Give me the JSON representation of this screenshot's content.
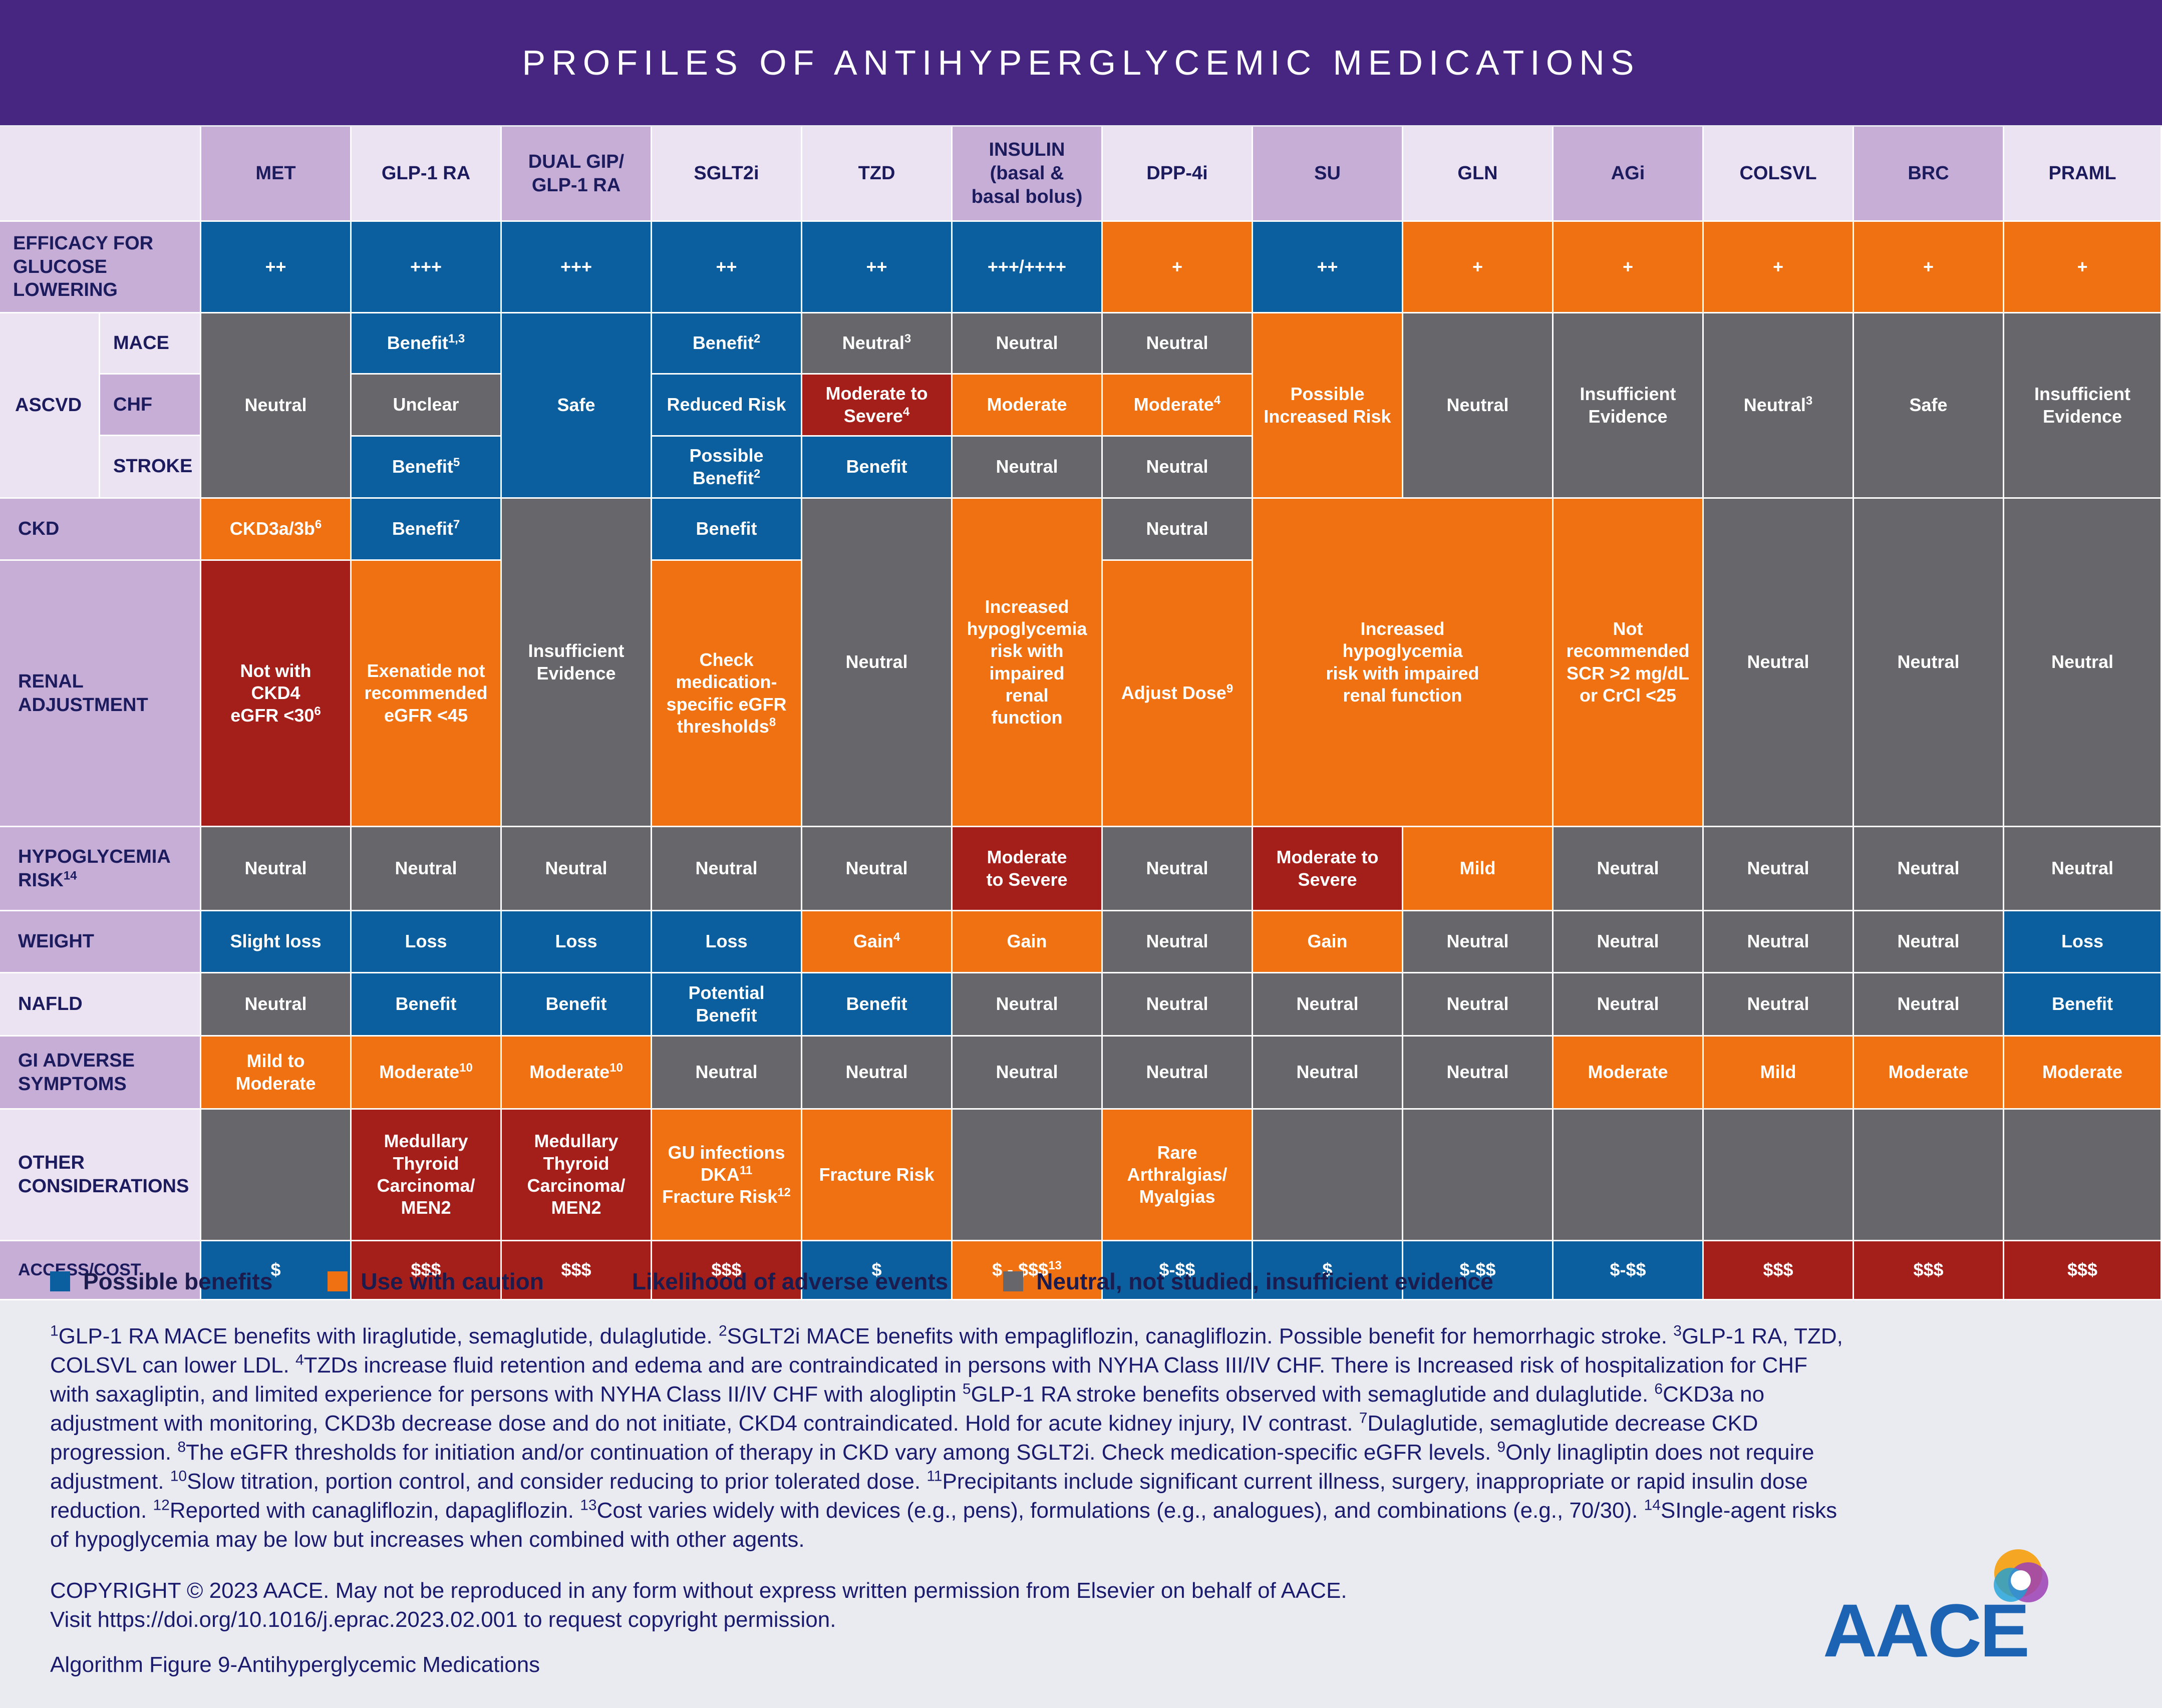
{
  "title": "PROFILES OF ANTIHYPERGLYCEMIC MEDICATIONS",
  "colors": {
    "benefit": "#0c5f9e",
    "caution": "#f07112",
    "adverse": "#a51f1a",
    "neutral": "#66666b",
    "header": "#472681"
  },
  "columns": {
    "met": "MET",
    "glp1": "GLP-1 RA",
    "dual1": "DUAL GIP/",
    "dual2": "GLP-1 RA",
    "sglt2": "SGLT2i",
    "tzd": "TZD",
    "ins1": "INSULIN",
    "ins2": "(basal &",
    "ins3": "basal bolus)",
    "dpp4": "DPP-4i",
    "su": "SU",
    "gln": "GLN",
    "agi": "AGi",
    "colsvl": "COLSVL",
    "brc": "BRC",
    "praml": "PRAML"
  },
  "rows": {
    "efficacy1": "EFFICACY FOR",
    "efficacy2": "GLUCOSE",
    "efficacy3": "LOWERING",
    "ascvd": "ASCVD",
    "mace": "MACE",
    "chf": "CHF",
    "stroke": "STROKE",
    "ckd": "CKD",
    "renal1": "RENAL",
    "renal2": "ADJUSTMENT",
    "hypo": "HYPOGLYCEMIA",
    "hypo_risk": "RISK",
    "hypo_sup": "14",
    "weight": "WEIGHT",
    "nafld": "NAFLD",
    "gi1": "GI ADVERSE",
    "gi2": "SYMPTOMS",
    "other1": "OTHER",
    "other2": "CONSIDERATIONS",
    "access": "ACCESS/COST"
  },
  "cells": {
    "eff_met": "++",
    "eff_glp1": "+++",
    "eff_dual": "+++",
    "eff_sglt2": "++",
    "eff_tzd": "++",
    "eff_ins": "+++/++++",
    "eff_dpp4": "+",
    "eff_su": "++",
    "eff_gln": "+",
    "eff_agi": "+",
    "eff_colsvl": "+",
    "eff_brc": "+",
    "eff_praml": "+",
    "neutral": "Neutral",
    "benefit": "Benefit",
    "safe": "Safe",
    "unclear": "Unclear",
    "reduced_risk": "Reduced Risk",
    "possible_benefit_1": "Possible",
    "possible_benefit_2": "Benefit",
    "moderate": "Moderate",
    "moderate_to_severe_1": "Moderate to",
    "moderate_to_severe_2": "Severe",
    "moderate_to": "Moderate",
    "to_severe": "to Severe",
    "possible_increased_1": "Possible",
    "possible_increased_2": "Increased Risk",
    "insufficient_1": "Insufficient",
    "insufficient_2": "Evidence",
    "ckd3": "CKD3a/3b",
    "not_ckd4_1": "Not with",
    "not_ckd4_2": "CKD4",
    "not_ckd4_3": "eGFR <30",
    "exenatide_1": "Exenatide not",
    "exenatide_2": "recommended",
    "exenatide_3": "eGFR <45",
    "check_1": "Check",
    "check_2": "medication-",
    "check_3": "specific eGFR",
    "check_4": "thresholds",
    "ins_renal_1": "Increased",
    "ins_renal_2": "hypoglycemia",
    "ins_renal_3": "risk with",
    "ins_renal_4": "impaired",
    "ins_renal_5": "renal",
    "ins_renal_6": "function",
    "adjust_dose": "Adjust Dose",
    "su_renal_1": "Increased",
    "su_renal_2": "hypoglycemia",
    "su_renal_3": "risk with impaired",
    "su_renal_4": "renal function",
    "agi_renal_1": "Not",
    "agi_renal_2": "recommended",
    "agi_renal_3": "SCR >2 mg/dL",
    "agi_renal_4": "or CrCl <25",
    "mild": "Mild",
    "slight_loss": "Slight loss",
    "loss": "Loss",
    "gain": "Gain",
    "potential_1": "Potential",
    "potential_2": "Benefit",
    "mild_mod_1": "Mild to",
    "mild_mod_2": "Moderate",
    "mtc_1": "Medullary",
    "mtc_2": "Thyroid",
    "mtc_3": "Carcinoma/",
    "mtc_4": "MEN2",
    "gu_1": "GU infections",
    "gu_2": "DKA",
    "gu_3": "Fracture Risk",
    "fracture": "Fracture Risk",
    "rare_1": "Rare",
    "rare_2": "Arthralgias/",
    "rare_3": "Myalgias",
    "c1": "$",
    "c3": "$$$",
    "c_ins": "$ - $$$",
    "c_range": "$-$$"
  },
  "sups": {
    "s1": "1,3",
    "s2": "2",
    "s3": "3",
    "s4": "4",
    "s5": "5",
    "s6": "6",
    "s7": "7",
    "s8": "8",
    "s9": "9",
    "s10": "10",
    "s11": "11",
    "s12": "12",
    "s13": "13"
  },
  "legend": [
    "Possible benefits",
    "Use with caution",
    "Likelihood of adverse events",
    "Neutral, not studied, insufficient evidence"
  ],
  "footnotes": [
    {
      "n": "1",
      "t": "GLP-1 RA MACE benefits with liraglutide, semaglutide, dulaglutide. "
    },
    {
      "n": "2",
      "t": "SGLT2i MACE benefits with empagliflozin, canagliflozin. Possible benefit for hemorrhagic stroke. "
    },
    {
      "n": "3",
      "t": "GLP-1 RA, TZD, COLSVL can lower LDL. "
    },
    {
      "n": "4",
      "t": "TZDs increase fluid retention and edema and are contraindicated in persons with NYHA Class III/IV CHF. There is Increased risk of hospitalization for CHF with saxagliptin, and limited experience for persons with NYHA Class II/IV CHF with alogliptin "
    },
    {
      "n": "5",
      "t": "GLP-1 RA stroke benefits observed with semaglutide and dulaglutide. "
    },
    {
      "n": "6",
      "t": "CKD3a no adjustment with monitoring, CKD3b decrease dose and do not initiate, CKD4 contraindicated. Hold for acute kidney injury, IV contrast. "
    },
    {
      "n": "7",
      "t": "Dulaglutide, semaglutide decrease CKD progression. "
    },
    {
      "n": "8",
      "t": "The eGFR thresholds for initiation and/or continuation of therapy in CKD vary among SGLT2i. Check medication-specific eGFR levels. "
    },
    {
      "n": "9",
      "t": "Only linagliptin does not require adjustment. "
    },
    {
      "n": "10",
      "t": "Slow titration, portion control, and consider reducing to prior tolerated dose. "
    },
    {
      "n": "11",
      "t": "Precipitants include significant current illness, surgery, inappropriate or rapid insulin dose reduction. "
    },
    {
      "n": "12",
      "t": "Reported with canagliflozin, dapagliflozin. "
    },
    {
      "n": "13",
      "t": "Cost varies widely with devices (e.g., pens), formulations (e.g., analogues), and combinations (e.g., 70/30). "
    },
    {
      "n": "14",
      "t": "SIngle-agent risks of hypoglycemia may be low but increases when combined with other agents."
    }
  ],
  "copyright_1": "COPYRIGHT © 2023 AACE. May not be reproduced in any form without express written permission from Elsevier on behalf of AACE.",
  "copyright_2": "Visit https://doi.org/10.1016/j.eprac.2023.02.001 to request copyright permission.",
  "caption": "Algorithm Figure 9-Antihyperglycemic Medications",
  "logo": "AACE"
}
